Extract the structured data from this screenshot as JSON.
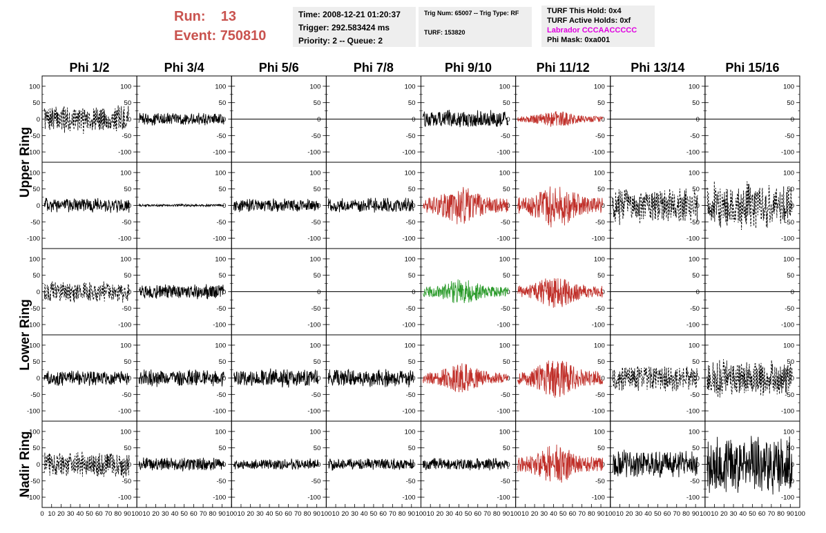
{
  "header": {
    "run_label": "Run:",
    "run_value": "13",
    "event_label": "Event:",
    "event_value": "750810"
  },
  "info_time": {
    "time": "Time: 2008-12-21 01:20:37",
    "trigger": "Trigger: 292.583424 ms",
    "priority": "Priority: 2 -- Queue: 2"
  },
  "info_trig": {
    "trig": "Trig Num: 65007 -- Trig Type: RF",
    "turf": "TURF: 153820"
  },
  "info_turf": {
    "hold": "TURF This Hold: 0x4",
    "active": "TURF Active Holds: 0xf",
    "labrador": "Labrador CCCAACCCCC",
    "phimask": "Phi Mask: 0xa001"
  },
  "colors": {
    "run_text": "#c9534f",
    "black": "#000000",
    "red": "#c0302a",
    "green": "#2a9a2a",
    "magenta": "#e000e0",
    "panel_bg": "#eeeeee"
  },
  "chart_data": {
    "type": "line",
    "columns": [
      "Phi 1/2",
      "Phi 3/4",
      "Phi 5/6",
      "Phi 7/8",
      "Phi 9/10",
      "Phi 11/12",
      "Phi 13/14",
      "Phi 15/16"
    ],
    "rows": [
      "Upper Ring",
      "Lower Ring",
      "Nadir Ring"
    ],
    "xlim": [
      0,
      100
    ],
    "ylim": [
      -125,
      125
    ],
    "yticks": [
      -100,
      -50,
      0,
      50,
      100
    ],
    "xticks": [
      0,
      10,
      20,
      30,
      40,
      50,
      60,
      70,
      80,
      90,
      100
    ],
    "panels": [
      {
        "row": 0,
        "col": 0,
        "style": "dashed",
        "color": "black",
        "amp": 45
      },
      {
        "row": 0,
        "col": 1,
        "style": "solid",
        "color": "black",
        "amp": 20
      },
      {
        "row": 0,
        "col": 2,
        "style": "flat",
        "color": "black",
        "amp": 0
      },
      {
        "row": 0,
        "col": 3,
        "style": "flat",
        "color": "black",
        "amp": 0
      },
      {
        "row": 0,
        "col": 4,
        "style": "solid",
        "color": "black",
        "amp": 30
      },
      {
        "row": 0,
        "col": 5,
        "style": "solid",
        "color": "red",
        "amp": 25
      },
      {
        "row": 0,
        "col": 6,
        "style": "flat",
        "color": "black",
        "amp": 0
      },
      {
        "row": 0,
        "col": 7,
        "style": "flat",
        "color": "black",
        "amp": 0
      },
      {
        "row": 1,
        "col": 0,
        "style": "solid",
        "color": "black",
        "amp": 25
      },
      {
        "row": 1,
        "col": 1,
        "style": "solid",
        "color": "black",
        "amp": 4
      },
      {
        "row": 1,
        "col": 2,
        "style": "solid",
        "color": "black",
        "amp": 22
      },
      {
        "row": 1,
        "col": 3,
        "style": "solid",
        "color": "black",
        "amp": 25
      },
      {
        "row": 1,
        "col": 4,
        "style": "solid",
        "color": "red",
        "amp": 60
      },
      {
        "row": 1,
        "col": 5,
        "style": "solid",
        "color": "red",
        "amp": 70
      },
      {
        "row": 1,
        "col": 6,
        "style": "dashed",
        "color": "black",
        "amp": 60
      },
      {
        "row": 1,
        "col": 7,
        "style": "dashed",
        "color": "black",
        "amp": 80
      },
      {
        "row": 2,
        "col": 0,
        "style": "dashed",
        "color": "black",
        "amp": 35
      },
      {
        "row": 2,
        "col": 1,
        "style": "solid",
        "color": "black",
        "amp": 25
      },
      {
        "row": 2,
        "col": 2,
        "style": "flat",
        "color": "black",
        "amp": 0
      },
      {
        "row": 2,
        "col": 3,
        "style": "flat",
        "color": "black",
        "amp": 0
      },
      {
        "row": 2,
        "col": 4,
        "style": "solid",
        "color": "green",
        "amp": 40
      },
      {
        "row": 2,
        "col": 5,
        "style": "solid",
        "color": "red",
        "amp": 50
      },
      {
        "row": 2,
        "col": 6,
        "style": "flat",
        "color": "black",
        "amp": 0
      },
      {
        "row": 2,
        "col": 7,
        "style": "flat",
        "color": "black",
        "amp": 0
      },
      {
        "row": 3,
        "col": 0,
        "style": "solid",
        "color": "black",
        "amp": 25
      },
      {
        "row": 3,
        "col": 1,
        "style": "solid",
        "color": "black",
        "amp": 28
      },
      {
        "row": 3,
        "col": 2,
        "style": "solid",
        "color": "black",
        "amp": 30
      },
      {
        "row": 3,
        "col": 3,
        "style": "solid",
        "color": "black",
        "amp": 30
      },
      {
        "row": 3,
        "col": 4,
        "style": "solid",
        "color": "red",
        "amp": 45
      },
      {
        "row": 3,
        "col": 5,
        "style": "solid",
        "color": "red",
        "amp": 60
      },
      {
        "row": 3,
        "col": 6,
        "style": "dashed",
        "color": "black",
        "amp": 45
      },
      {
        "row": 3,
        "col": 7,
        "style": "dashed",
        "color": "black",
        "amp": 60
      },
      {
        "row": 4,
        "col": 0,
        "style": "dashed",
        "color": "black",
        "amp": 45
      },
      {
        "row": 4,
        "col": 1,
        "style": "solid",
        "color": "black",
        "amp": 22
      },
      {
        "row": 4,
        "col": 2,
        "style": "solid",
        "color": "black",
        "amp": 18
      },
      {
        "row": 4,
        "col": 3,
        "style": "solid",
        "color": "black",
        "amp": 20
      },
      {
        "row": 4,
        "col": 4,
        "style": "solid",
        "color": "black",
        "amp": 20
      },
      {
        "row": 4,
        "col": 5,
        "style": "solid",
        "color": "red",
        "amp": 60
      },
      {
        "row": 4,
        "col": 6,
        "style": "solid",
        "color": "black",
        "amp": 45
      },
      {
        "row": 4,
        "col": 7,
        "style": "solid",
        "color": "black",
        "amp": 95
      }
    ]
  }
}
